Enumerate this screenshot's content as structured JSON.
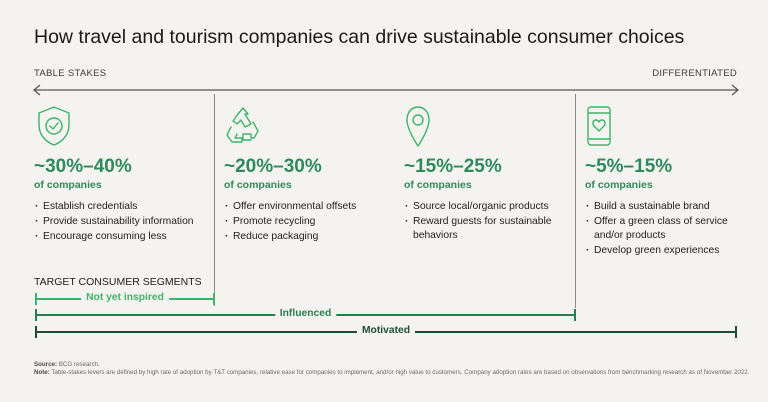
{
  "title": "How travel and tourism companies can drive sustainable consumer choices",
  "scale": {
    "left_label": "TABLE STAKES",
    "right_label": "DIFFERENTIATED"
  },
  "columns": [
    {
      "icon": "shield-check-icon",
      "range": "~30%–40%",
      "sub": "of companies",
      "items": [
        "Establish credentials",
        "Provide sustainability information",
        "Encourage consuming less"
      ]
    },
    {
      "icon": "recycle-icon",
      "range": "~20%–30%",
      "sub": "of companies",
      "items": [
        "Offer environmental offsets",
        "Promote recycling",
        "Reduce packaging"
      ]
    },
    {
      "icon": "location-pin-icon",
      "range": "~15%–25%",
      "sub": "of companies",
      "items": [
        "Source local/organic products",
        "Reward guests for sustainable behaviors"
      ]
    },
    {
      "icon": "phone-heart-icon",
      "range": "~5%–15%",
      "sub": "of companies",
      "items": [
        "Build a sustainable brand",
        "Offer a green class of service and/or products",
        "Develop green experiences"
      ]
    }
  ],
  "segments": {
    "title": "TARGET CONSUMER SEGMENTS",
    "items": [
      {
        "label": "Not yet inspired"
      },
      {
        "label": "Influenced"
      },
      {
        "label": "Motivated"
      }
    ]
  },
  "colors": {
    "accent_green": "#2e8a5c",
    "segment_light": "#3fb36b",
    "segment_mid": "#2a7d52",
    "segment_dark": "#1d4d36",
    "background": "#f4f3ef"
  },
  "footnote": {
    "source_label": "Source:",
    "source_text": "BCG research.",
    "note_label": "Note:",
    "note_text": "Table-stakes levers are defined by high rate of adoption by T&T companies, relative ease for companies to implement, and/or high value to customers. Company adoption rates are based on observations from benchmarking research as of November 2022."
  }
}
